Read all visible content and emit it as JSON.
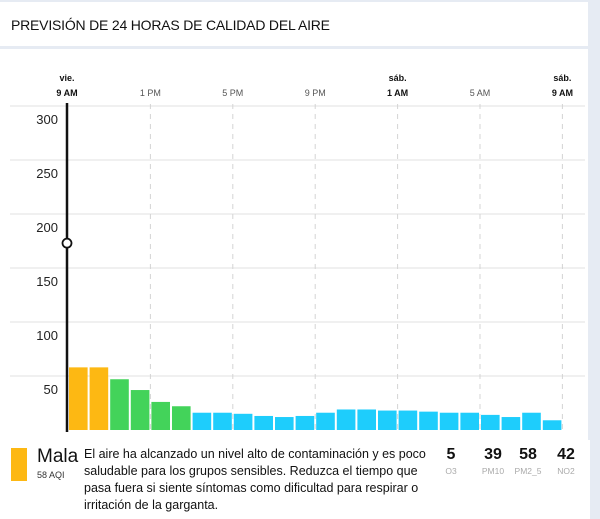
{
  "header": {
    "title": "PREVISIÓN DE 24 HORAS DE CALIDAD DEL AIRE"
  },
  "chart_data": {
    "type": "bar",
    "title": "PREVISIÓN DE 24 HORAS DE CALIDAD DEL AIRE",
    "ylabel": "",
    "xlabel": "",
    "ylim": [
      0,
      300
    ],
    "yticks": [
      "300",
      "250",
      "200",
      "150",
      "100",
      "50"
    ],
    "ytick_values": [
      300,
      250,
      200,
      150,
      100,
      50
    ],
    "xticks": [
      {
        "day": "vie.",
        "time": "9 AM",
        "bold": true,
        "index": 0
      },
      {
        "day": "",
        "time": "1 PM",
        "bold": false,
        "index": 4
      },
      {
        "day": "",
        "time": "5 PM",
        "bold": false,
        "index": 8
      },
      {
        "day": "",
        "time": "9 PM",
        "bold": false,
        "index": 12
      },
      {
        "day": "sáb.",
        "time": "1 AM",
        "bold": true,
        "index": 16
      },
      {
        "day": "",
        "time": "5 AM",
        "bold": false,
        "index": 20
      },
      {
        "day": "sáb.",
        "time": "9 AM",
        "bold": true,
        "index": 24
      }
    ],
    "values": [
      58,
      58,
      47,
      37,
      26,
      22,
      16,
      16,
      15,
      13,
      12,
      13,
      16,
      19,
      19,
      18,
      18,
      17,
      16,
      16,
      14,
      12,
      16,
      9
    ],
    "colors": {
      "moderate": "#fdb813",
      "good": "#43d35a",
      "low": "#1ecdfc"
    },
    "cursor_value": 173,
    "grid": true
  },
  "summary": {
    "level": "Mala",
    "aqi": "58 AQI",
    "color": "#fdb813",
    "description": "El aire ha alcanzado un nivel alto de contaminación y es poco saludable para los grupos sensibles. Reduzca el tiempo que pasa fuera si siente síntomas como dificultad para respirar o irritación de la garganta.",
    "pollutants": [
      {
        "value": "5",
        "name": "O3"
      },
      {
        "value": "39",
        "name": "PM10"
      },
      {
        "value": "58",
        "name": "PM2_5"
      },
      {
        "value": "42",
        "name": "NO2"
      }
    ]
  }
}
